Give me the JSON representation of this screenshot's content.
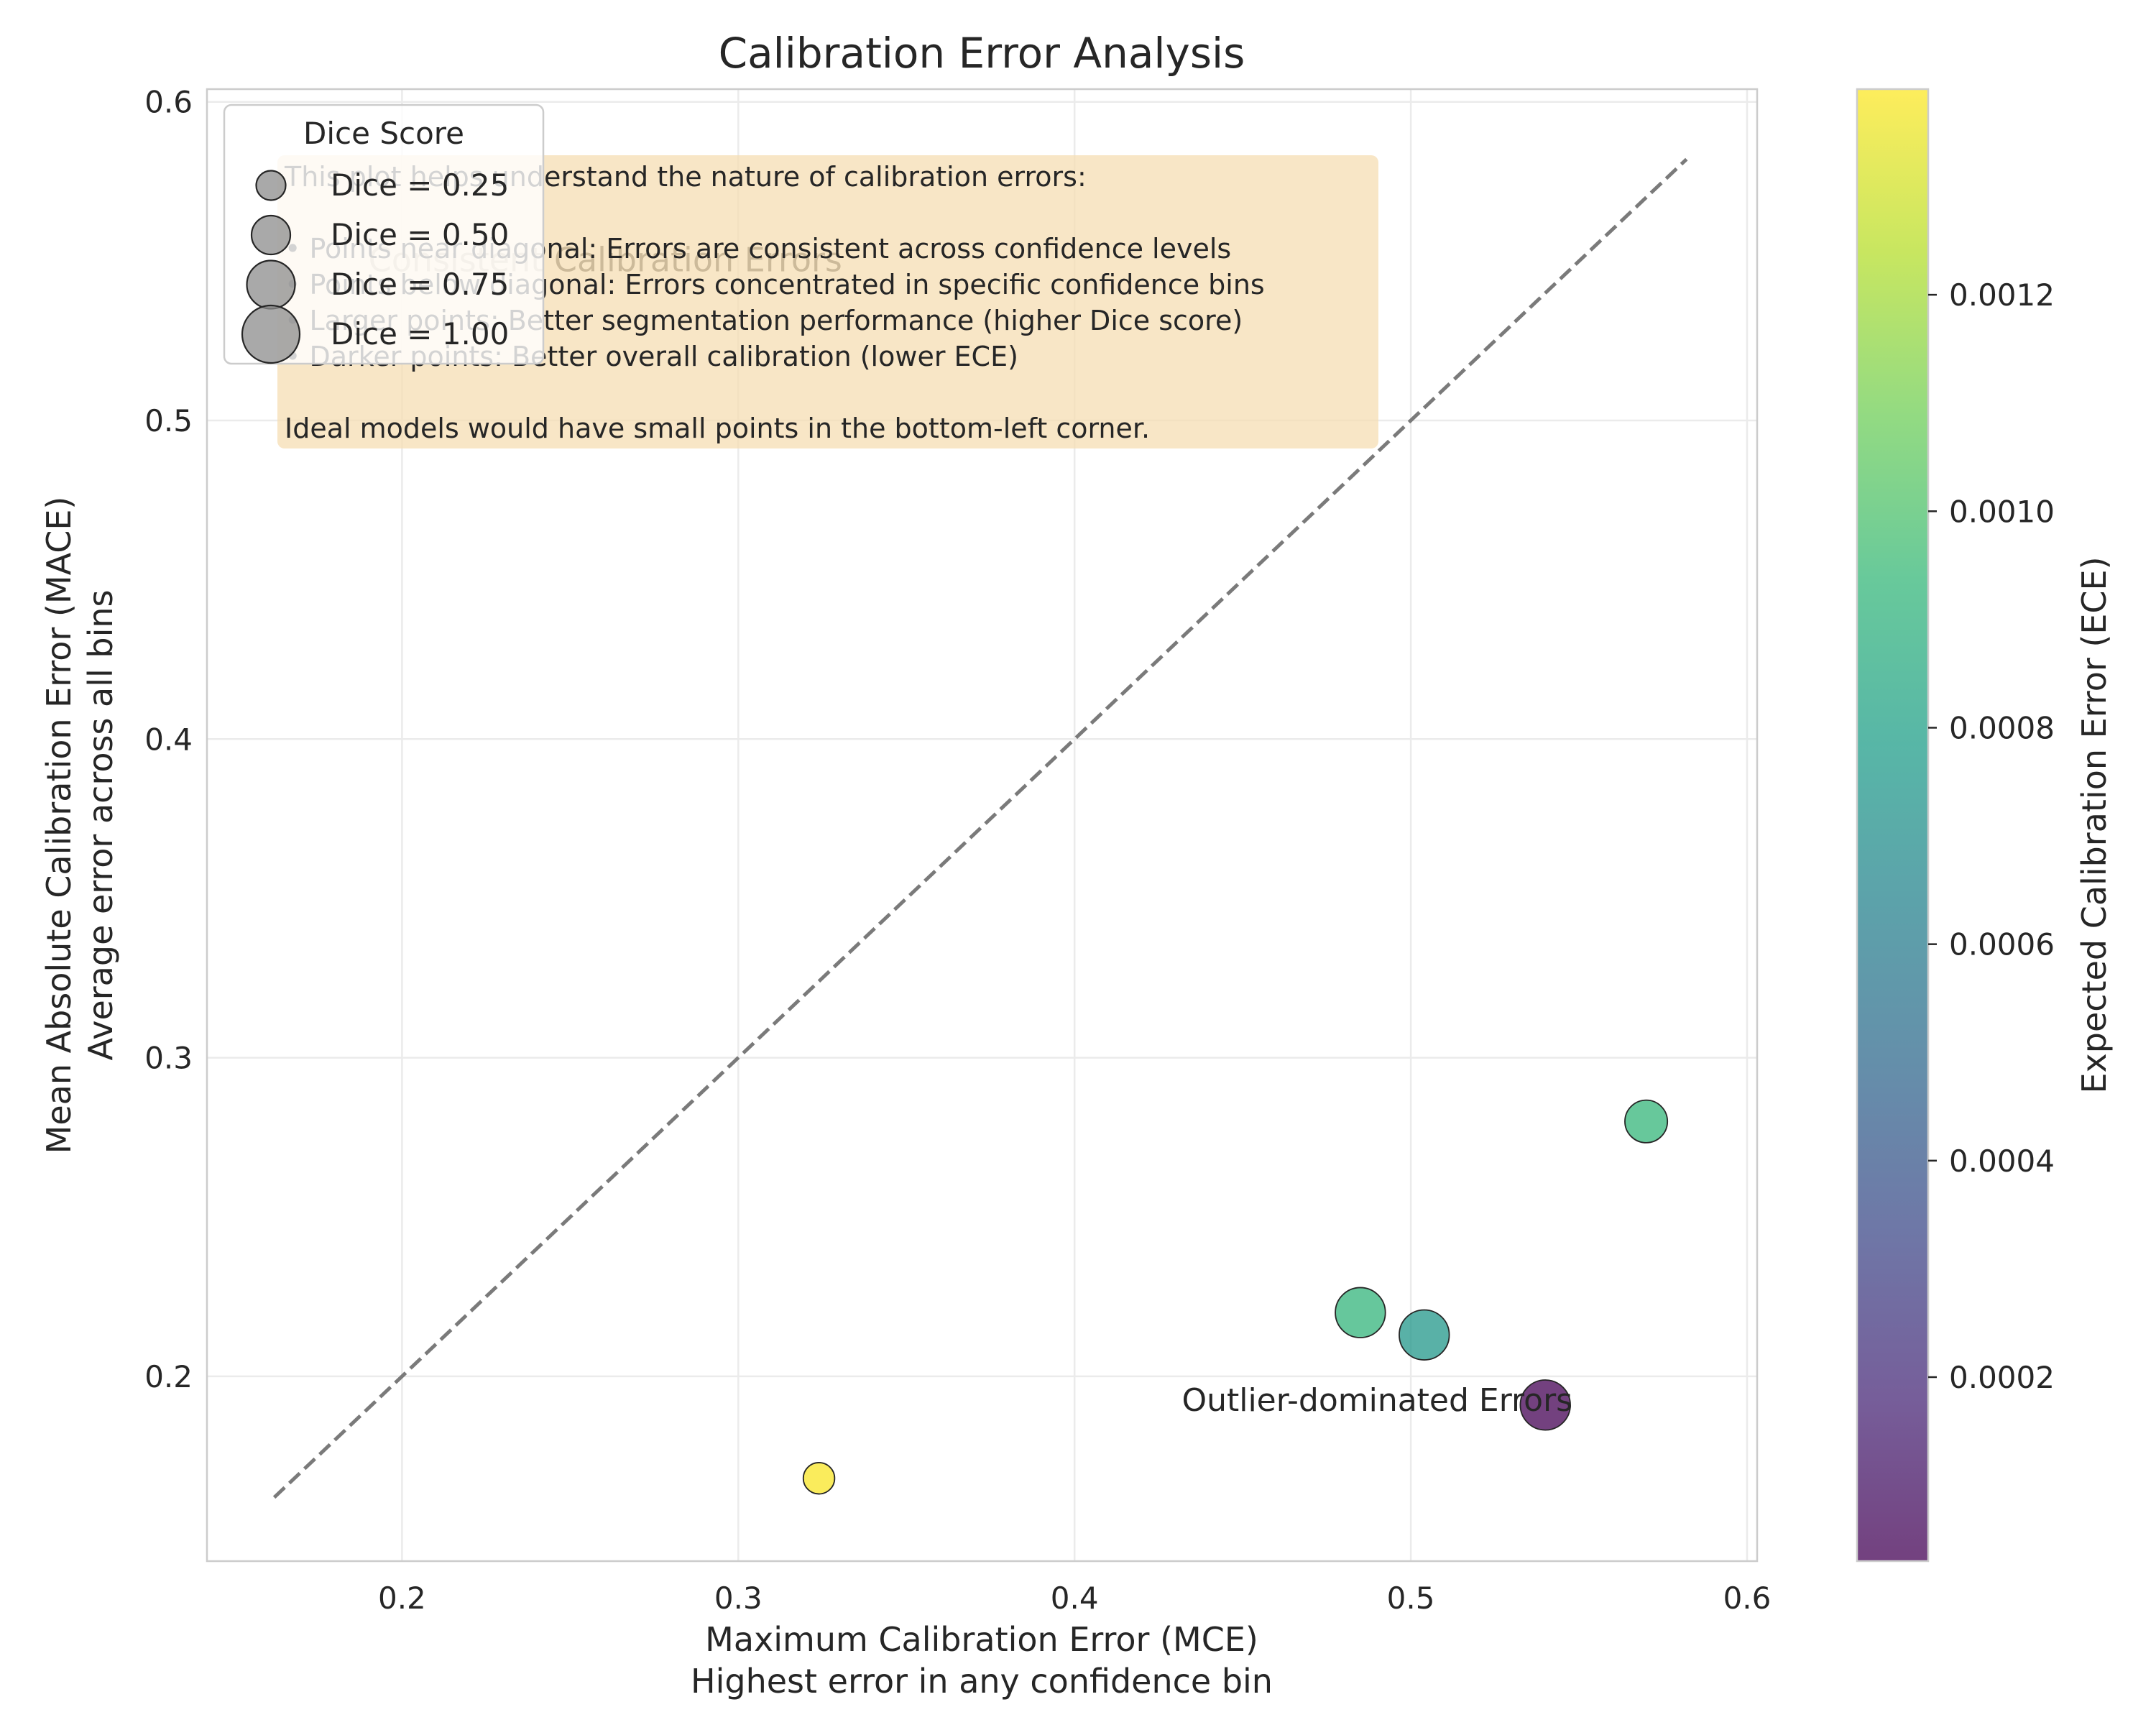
{
  "chart_data": {
    "type": "scatter",
    "title": "Calibration Error Analysis",
    "xlabel": [
      "Maximum Calibration Error (MCE)",
      "Highest error in any confidence bin"
    ],
    "ylabel": [
      "Mean Absolute Calibration Error (MACE)",
      "Average error across all bins"
    ],
    "xlim": [
      0.142,
      0.603
    ],
    "ylim": [
      0.142,
      0.604
    ],
    "x_ticks": [
      0.2,
      0.3,
      0.4,
      0.5,
      0.6
    ],
    "y_ticks": [
      0.2,
      0.3,
      0.4,
      0.5,
      0.6
    ],
    "grid": true,
    "diagonal": {
      "x": [
        0.162,
        0.582
      ],
      "y": [
        0.162,
        0.582
      ],
      "style": "dashed",
      "color": "#7a7a7a"
    },
    "points": [
      {
        "x": 0.324,
        "y": 0.168,
        "dice": 0.3,
        "ece": 0.00138
      },
      {
        "x": 0.485,
        "y": 0.22,
        "dice": 0.8,
        "ece": 0.00092
      },
      {
        "x": 0.504,
        "y": 0.213,
        "dice": 0.8,
        "ece": 0.00075
      },
      {
        "x": 0.54,
        "y": 0.191,
        "dice": 0.8,
        "ece": 3e-05
      },
      {
        "x": 0.57,
        "y": 0.28,
        "dice": 0.6,
        "ece": 0.00093
      }
    ],
    "colorbar": {
      "label": "Expected Calibration Error (ECE)",
      "range": [
        3e-05,
        0.00139
      ],
      "ticks": [
        0.0002,
        0.0004,
        0.0006,
        0.0008,
        0.001,
        0.0012
      ],
      "tick_labels": [
        "0.0002",
        "0.0004",
        "0.0006",
        "0.0008",
        "0.0010",
        "0.0012"
      ],
      "colormap": [
        "#440154",
        "#482878",
        "#3e4989",
        "#31688e",
        "#26828e",
        "#1f9e89",
        "#35b779",
        "#6ece58",
        "#b5de2b",
        "#fde725"
      ]
    },
    "legend": {
      "title": "Dice Score",
      "placement": "top-left",
      "entries": [
        {
          "label": "Dice = 0.25",
          "dice": 0.25
        },
        {
          "label": "Dice = 0.50",
          "dice": 0.5
        },
        {
          "label": "Dice = 0.75",
          "dice": 0.75
        },
        {
          "label": "Dice = 1.00",
          "dice": 1.0
        }
      ]
    },
    "annotations": {
      "info_box_lines": [
        "This plot helps understand the nature of calibration errors:",
        "",
        "• Points near diagonal: Errors are consistent across confidence levels",
        "• Points below diagonal: Errors concentrated in specific confidence bins",
        "• Larger points: Better segmentation performance (higher Dice score)",
        "• Darker points: Better overall calibration (lower ECE)",
        "",
        "Ideal models would have small points in the bottom-left corner."
      ],
      "region_labels": [
        {
          "text": "Consistent Calibration Errors",
          "x": 0.19,
          "y": 0.55
        },
        {
          "text": "Outlier-dominated Errors",
          "x": 0.49,
          "y": 0.19
        }
      ]
    }
  }
}
